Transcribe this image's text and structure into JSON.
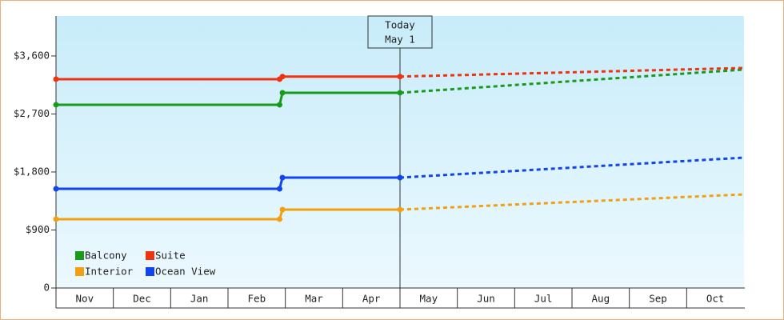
{
  "chart_data": {
    "type": "line",
    "categories": [
      "Nov",
      "Dec",
      "Jan",
      "Feb",
      "Mar",
      "Apr",
      "May",
      "Jun",
      "Jul",
      "Aug",
      "Sep",
      "Oct"
    ],
    "x": [
      0,
      3.9,
      3.95,
      6,
      12
    ],
    "xlim": [
      0,
      12
    ],
    "ylim": [
      0,
      4220
    ],
    "yticks": [
      0,
      {
        "value": 900,
        "label": "$900"
      },
      {
        "value": 1800,
        "label": "$1,800"
      },
      {
        "value": 2700,
        "label": "$2,700"
      },
      {
        "value": 3600,
        "label": "$3,600"
      }
    ],
    "series": [
      {
        "name": "Balcony",
        "color": "#1a9a1a",
        "values": [
          2843,
          2843,
          3029,
          3029,
          null
        ],
        "projection": [
          null,
          null,
          null,
          3029,
          3389
        ]
      },
      {
        "name": "Suite",
        "color": "#ee3311",
        "values": [
          3240,
          3240,
          3280,
          3280,
          null
        ],
        "projection": [
          null,
          null,
          null,
          3280,
          3414
        ]
      },
      {
        "name": "Interior",
        "color": "#f0a010",
        "values": [
          1068,
          1068,
          1216,
          1216,
          null
        ],
        "projection": [
          null,
          null,
          null,
          1216,
          1452
        ]
      },
      {
        "name": "Ocean View",
        "color": "#1144ee",
        "values": [
          1539,
          1539,
          1713,
          1713,
          null
        ],
        "projection": [
          null,
          null,
          null,
          1713,
          2023
        ]
      }
    ],
    "annotation": {
      "lines": [
        "Today",
        "May 1"
      ],
      "x": 6
    },
    "legend": "lower-left"
  }
}
